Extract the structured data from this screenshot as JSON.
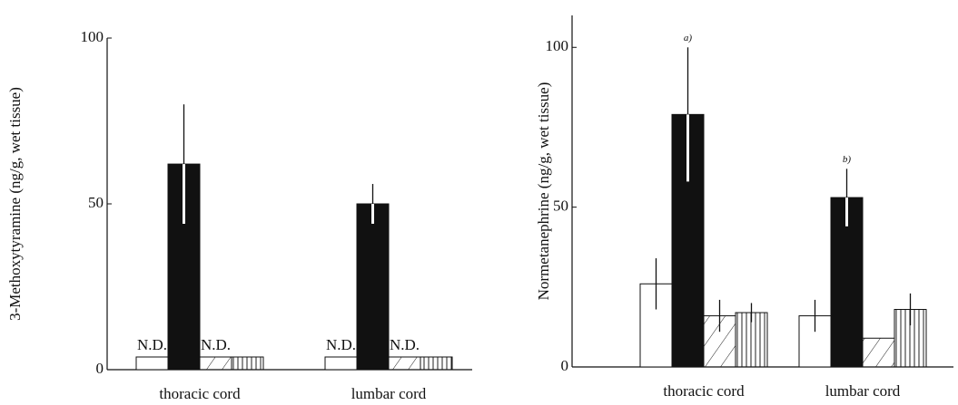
{
  "chart_data": [
    {
      "type": "bar",
      "ylabel": "3-Methoxytyramine (ng/g, wet tissue)",
      "categories": [
        "thoracic cord",
        "lumbar cord"
      ],
      "ylim": [
        0,
        100
      ],
      "yticks": [
        0,
        50,
        100
      ],
      "series": [
        {
          "color": "#ffffff",
          "pattern": "none",
          "values": [
            null,
            null
          ],
          "value_labels": [
            "N.D.",
            "N.D."
          ]
        },
        {
          "color": "#111111",
          "pattern": "none",
          "values": [
            62,
            50
          ],
          "errors": [
            18,
            6
          ]
        },
        {
          "color": "#ffffff",
          "pattern": "diagonal",
          "values": [
            null,
            null
          ],
          "value_labels": [
            "N.D.",
            "N.D."
          ]
        },
        {
          "color": "#ffffff",
          "pattern": "vertical",
          "values": [
            null,
            null
          ]
        }
      ]
    },
    {
      "type": "bar",
      "ylabel": "Normetanephrine (ng/g, wet tissue)",
      "categories": [
        "thoracic cord",
        "lumbar cord"
      ],
      "ylim": [
        0,
        110
      ],
      "yticks": [
        0,
        50,
        100
      ],
      "series": [
        {
          "color": "#ffffff",
          "pattern": "none",
          "values": [
            26,
            16
          ],
          "errors": [
            8,
            5
          ]
        },
        {
          "color": "#111111",
          "pattern": "none",
          "values": [
            79,
            53
          ],
          "errors": [
            21,
            9
          ]
        },
        {
          "color": "#ffffff",
          "pattern": "diagonal",
          "values": [
            16,
            9
          ],
          "errors": [
            5,
            null
          ]
        },
        {
          "color": "#ffffff",
          "pattern": "vertical",
          "values": [
            17,
            18
          ],
          "errors": [
            3,
            5
          ]
        }
      ],
      "annotations": [
        {
          "text": "a)",
          "category": "thoracic cord"
        },
        {
          "text": "b)",
          "category": "lumbar cord"
        }
      ]
    }
  ]
}
